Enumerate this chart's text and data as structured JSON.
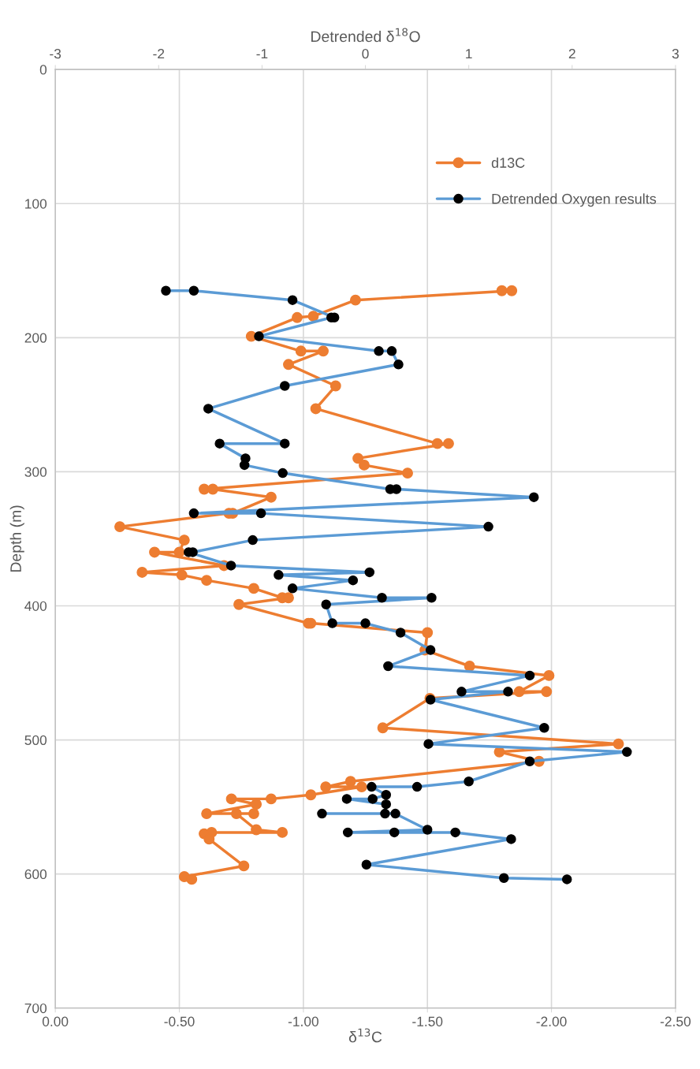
{
  "chart_data": {
    "type": "line",
    "xlabel": "δ$^{13}$C",
    "x2label": "Detrended δ$^{18}$O",
    "ylabel": "Depth (m)",
    "xlim": [
      0,
      -2.5
    ],
    "xticks": [
      {
        "value": 0,
        "label": "0.00"
      },
      {
        "value": -0.5,
        "label": "-0.50"
      },
      {
        "value": -1,
        "label": "-1.00"
      },
      {
        "value": -1.5,
        "label": "-1.50"
      },
      {
        "value": -2,
        "label": "-2.00"
      },
      {
        "value": -2.5,
        "label": "-2.50"
      }
    ],
    "x2lim": [
      -3,
      3
    ],
    "x2ticks": [
      {
        "value": -3,
        "label": "-3"
      },
      {
        "value": -2,
        "label": "-2"
      },
      {
        "value": -1,
        "label": "-1"
      },
      0,
      1,
      2,
      3
    ],
    "ylim": [
      700,
      0
    ],
    "yticks": [
      0,
      100,
      200,
      300,
      400,
      500,
      600,
      700
    ],
    "grid": true,
    "legend": "top right",
    "marker": "circle",
    "line_style": "solid",
    "series": [
      {
        "name": "d13C",
        "color": "#ed7d31",
        "x": [
          -1.8,
          -1.84,
          -1.21,
          -1.04,
          -0.975,
          -0.79,
          -0.99,
          -1.08,
          -0.94,
          -1.13,
          -1.05,
          -1.54,
          -1.585,
          -1.22,
          -1.245,
          -1.42,
          -0.6,
          -0.635,
          -0.87,
          -0.715,
          -0.7,
          -0.26,
          -0.52,
          -0.5,
          -0.4,
          -0.68,
          -0.35,
          -0.51,
          -0.61,
          -0.8,
          -0.915,
          -0.94,
          -0.74,
          -1.02,
          -1.03,
          -1.5,
          -1.49,
          -1.67,
          -1.99,
          -1.87,
          -1.98,
          -1.51,
          -1.32,
          -2.27,
          -1.79,
          -1.95,
          -1.19,
          -1.09,
          -1.235,
          -1.03,
          -0.87,
          -0.71,
          -0.81,
          -0.61,
          -0.8,
          -0.73,
          -0.81,
          -0.915,
          -0.63,
          -0.6,
          -0.62,
          -0.76,
          -0.52,
          -0.55
        ],
        "values": [
          165,
          165,
          172,
          184,
          185,
          199,
          210,
          210,
          220,
          236,
          253,
          279,
          279,
          290,
          295,
          301,
          313,
          313,
          319,
          331,
          331,
          341,
          351,
          360,
          360,
          370,
          375,
          377,
          381,
          387,
          394,
          394,
          399,
          413,
          413,
          420,
          433,
          445,
          452,
          464,
          464,
          469,
          491,
          503,
          509,
          516,
          531,
          535,
          535,
          541,
          544,
          544,
          548,
          555,
          555,
          555,
          567,
          569,
          569,
          570,
          574,
          594,
          602,
          604
        ]
      },
      {
        "name": "Detrended Oxygen results",
        "color": "#5b9bd5",
        "axis": "x2",
        "x": [
          -1.93,
          -1.66,
          -0.705,
          -0.3,
          -0.33,
          -1.03,
          0.13,
          0.255,
          0.32,
          -0.78,
          -1.52,
          -0.78,
          -1.41,
          -1.16,
          -1.17,
          -0.8,
          0.24,
          0.3,
          1.63,
          -1.66,
          -1.01,
          1.19,
          -1.09,
          -1.67,
          -1.71,
          -1.3,
          0.04,
          -0.84,
          -0.12,
          -0.705,
          0.16,
          0.64,
          -0.38,
          -0.32,
          0.0,
          0.34,
          0.63,
          0.22,
          1.59,
          0.93,
          1.38,
          0.63,
          1.73,
          0.61,
          2.53,
          1.59,
          1.0,
          0.5,
          0.06,
          0.2,
          0.07,
          -0.18,
          0.2,
          0.19,
          -0.42,
          0.29,
          0.6,
          -0.17,
          0.28,
          0.87,
          1.41,
          0.01,
          1.34,
          1.95
        ],
        "values": [
          165,
          165,
          172,
          185,
          185,
          199,
          210,
          210,
          220,
          236,
          253,
          279,
          279,
          290,
          295,
          301,
          313,
          313,
          319,
          331,
          331,
          341,
          351,
          360,
          360,
          370,
          375,
          377,
          381,
          387,
          394,
          394,
          399,
          413,
          413,
          420,
          433,
          445,
          452,
          464,
          464,
          470,
          491,
          503,
          509,
          516,
          531,
          535,
          535,
          541,
          544,
          544,
          548,
          555,
          555,
          555,
          567,
          569,
          569,
          569,
          574,
          593,
          603,
          604
        ]
      }
    ]
  }
}
